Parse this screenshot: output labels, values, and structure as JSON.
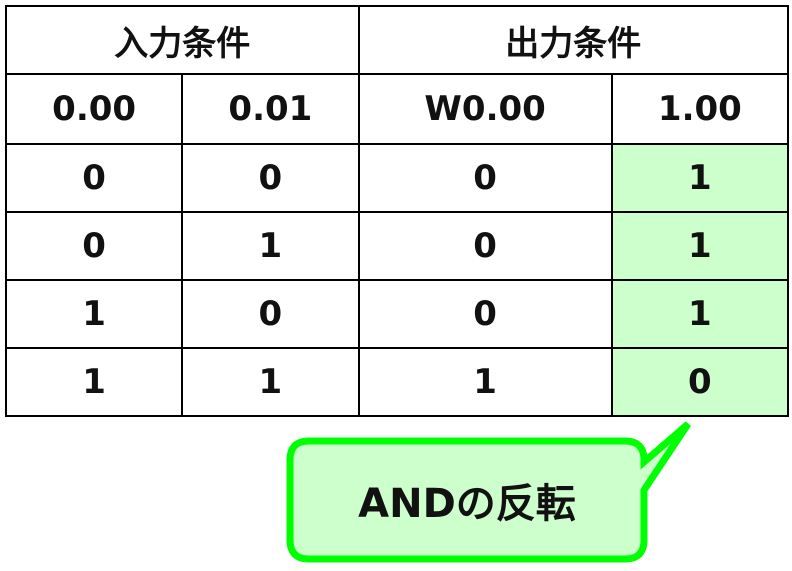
{
  "table": {
    "group_headers": [
      "入力条件",
      "出力条件"
    ],
    "column_headers": [
      "0.00",
      "0.01",
      "W0.00",
      "1.00"
    ],
    "rows": [
      [
        "0",
        "0",
        "0",
        "1"
      ],
      [
        "0",
        "1",
        "0",
        "1"
      ],
      [
        "1",
        "0",
        "0",
        "1"
      ],
      [
        "1",
        "1",
        "1",
        "0"
      ]
    ],
    "highlight_color": "#ccffcc"
  },
  "callout": {
    "text": "ANDの反転",
    "border_color": "#00ff00",
    "fill_color": "#ccffcc"
  }
}
